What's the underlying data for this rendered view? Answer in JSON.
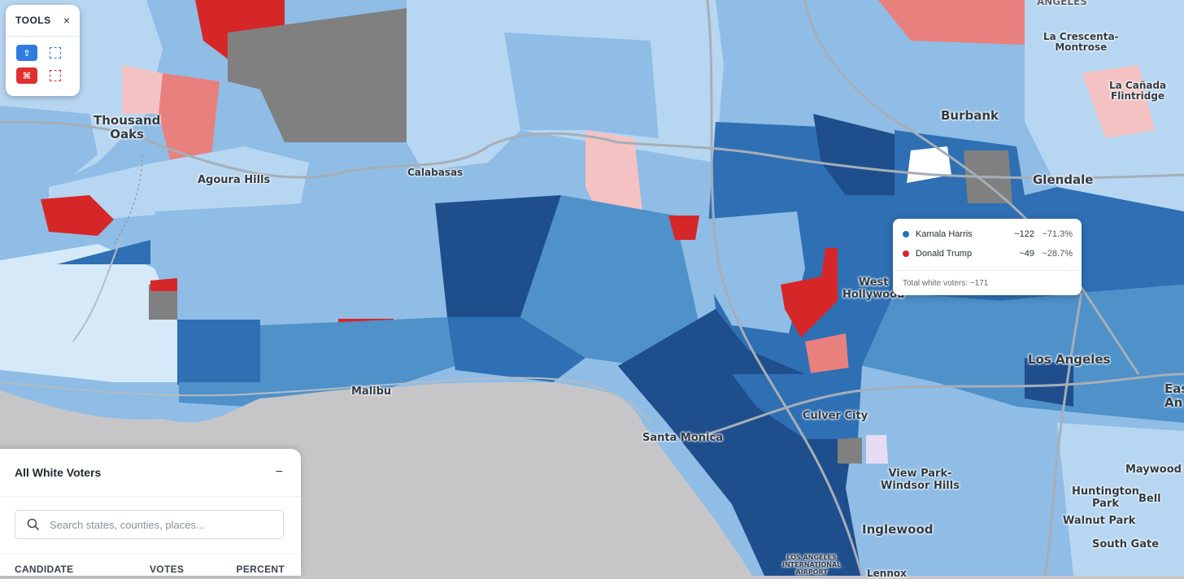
{
  "tools": {
    "title": "TOOLS",
    "close": "×",
    "select_add_glyph": "⇧",
    "select_remove_glyph": "⌘"
  },
  "map": {
    "colors": {
      "ocean": "#c6c6c8",
      "harris_strongest": "#1f4e8c",
      "harris_strong": "#2f6fb4",
      "harris_medium": "#4f91c9",
      "harris_light": "#8fbde6",
      "harris_lighter": "#b7d6f1",
      "harris_faint": "#d6e9f8",
      "trump_strong": "#d62728",
      "trump_medium": "#e8807d",
      "trump_light": "#f4c2c2",
      "no_data": "#808080",
      "road": "#9aa3ad"
    },
    "labels": [
      {
        "id": "angeles-top",
        "text": "ANGELES"
      },
      {
        "id": "la-crescenta",
        "text": "La Crescenta-\nMontrose"
      },
      {
        "id": "la-canada",
        "text": "La Cañada\nFlintridge"
      },
      {
        "id": "thousand-oaks",
        "text": "Thousand\nOaks"
      },
      {
        "id": "burbank",
        "text": "Burbank"
      },
      {
        "id": "glendale",
        "text": "Glendale"
      },
      {
        "id": "agoura-hills",
        "text": "Agoura Hills"
      },
      {
        "id": "calabasas",
        "text": "Calabasas"
      },
      {
        "id": "west-hollywood",
        "text": "West\nHollywood"
      },
      {
        "id": "los-angeles",
        "text": "Los Angeles"
      },
      {
        "id": "east-la",
        "text": "Eas\nAn"
      },
      {
        "id": "malibu",
        "text": "Malibu"
      },
      {
        "id": "culver-city",
        "text": "Culver City"
      },
      {
        "id": "santa-monica",
        "text": "Santa Monica"
      },
      {
        "id": "view-park",
        "text": "View Park-\nWindsor Hills"
      },
      {
        "id": "maywood",
        "text": "Maywood"
      },
      {
        "id": "huntington-park",
        "text": "Huntington\nPark"
      },
      {
        "id": "bell",
        "text": "Bell"
      },
      {
        "id": "walnut-park",
        "text": "Walnut Park"
      },
      {
        "id": "inglewood",
        "text": "Inglewood"
      },
      {
        "id": "south-gate",
        "text": "South Gate"
      },
      {
        "id": "lax",
        "text": "LOS ANGELES\nINTERNATIONAL\nAIRPORT"
      },
      {
        "id": "lennox",
        "text": "Lennox"
      }
    ]
  },
  "tooltip": {
    "rows": [
      {
        "name": "Kamala Harris",
        "votes": "~122",
        "percent": "~71.3%",
        "color": "#2f6fb4"
      },
      {
        "name": "Donald Trump",
        "votes": "~49",
        "percent": "~28.7%",
        "color": "#d62728"
      }
    ],
    "total": "Total white voters: ~171"
  },
  "panel": {
    "title": "All White Voters",
    "minimize": "−",
    "search_placeholder": "Search states, counties, places...",
    "columns": {
      "candidate": "CANDIDATE",
      "votes": "VOTES",
      "percent": "PERCENT"
    }
  }
}
